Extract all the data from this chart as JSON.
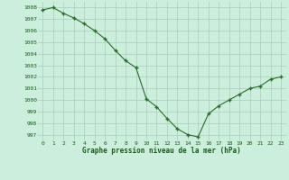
{
  "x": [
    0,
    1,
    2,
    3,
    4,
    5,
    6,
    7,
    8,
    9,
    10,
    11,
    12,
    13,
    14,
    15,
    16,
    17,
    18,
    19,
    20,
    21,
    22,
    23
  ],
  "y": [
    1007.8,
    1008.0,
    1007.5,
    1007.1,
    1006.6,
    1006.0,
    1005.3,
    1004.3,
    1003.4,
    1002.8,
    1000.1,
    999.4,
    998.4,
    997.5,
    997.0,
    996.8,
    998.8,
    999.5,
    1000.0,
    1000.5,
    1001.0,
    1001.2,
    1001.8,
    1002.0
  ],
  "line_color": "#2d6a2d",
  "marker_color": "#2d6a2d",
  "bg_color": "#cceedd",
  "grid_color": "#aaccbb",
  "xlabel": "Graphe pression niveau de la mer (hPa)",
  "xlabel_color": "#1a5c1a",
  "tick_color": "#1a5c1a",
  "ylim": [
    996.5,
    1008.5
  ],
  "yticks": [
    997,
    998,
    999,
    1000,
    1001,
    1002,
    1003,
    1004,
    1005,
    1006,
    1007,
    1008
  ],
  "xticks": [
    0,
    1,
    2,
    3,
    4,
    5,
    6,
    7,
    8,
    9,
    10,
    11,
    12,
    13,
    14,
    15,
    16,
    17,
    18,
    19,
    20,
    21,
    22,
    23
  ],
  "figsize": [
    3.2,
    2.0
  ],
  "dpi": 100
}
